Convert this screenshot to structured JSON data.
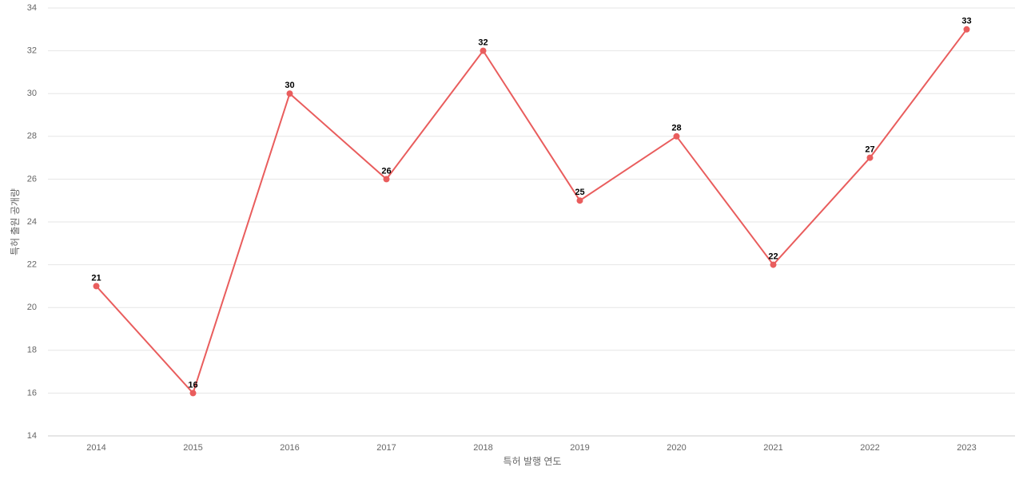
{
  "chart_data": {
    "type": "line",
    "x_label": "특허 발행 연도",
    "y_label": "특허 출원 공개량",
    "categories": [
      "2014",
      "2015",
      "2016",
      "2017",
      "2018",
      "2019",
      "2020",
      "2021",
      "2022",
      "2023"
    ],
    "series": [
      {
        "color": "#e95d5d",
        "values": [
          21,
          16,
          30,
          26,
          32,
          25,
          28,
          22,
          27,
          33
        ]
      }
    ],
    "ylim": [
      14,
      34
    ],
    "yticks": [
      14,
      16,
      18,
      20,
      22,
      24,
      26,
      28,
      30,
      32,
      34
    ],
    "grid": true,
    "data_labels": true
  }
}
